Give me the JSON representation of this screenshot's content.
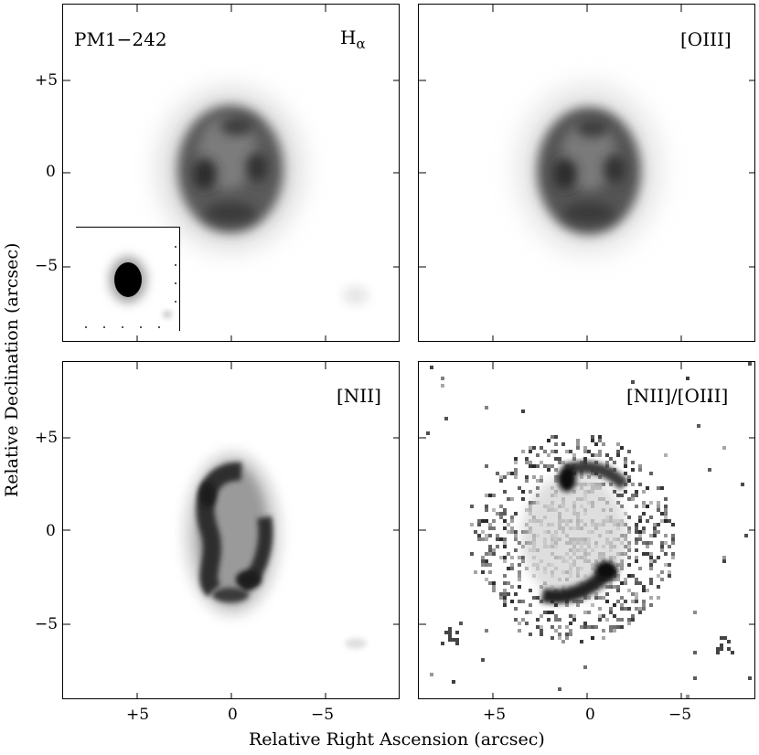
{
  "panels": {
    "top_left": {
      "object": "PM1−242",
      "line": "H",
      "line_sub": "α"
    },
    "top_right": {
      "line": "[OIII]"
    },
    "bottom_left": {
      "line": "[NII]"
    },
    "bottom_right": {
      "line": "[NII]/[OIII]"
    }
  },
  "axes": {
    "y_title": "Relative Declination (arcsec)",
    "x_title": "Relative Right Ascension (arcsec)",
    "y_ticks": [
      "+5",
      "0",
      "−5"
    ],
    "x_ticks": [
      "+5",
      "0",
      "−5"
    ]
  },
  "colors": {
    "background": "#ffffff",
    "ink": "#000000",
    "emission": "#2a2a2a"
  }
}
